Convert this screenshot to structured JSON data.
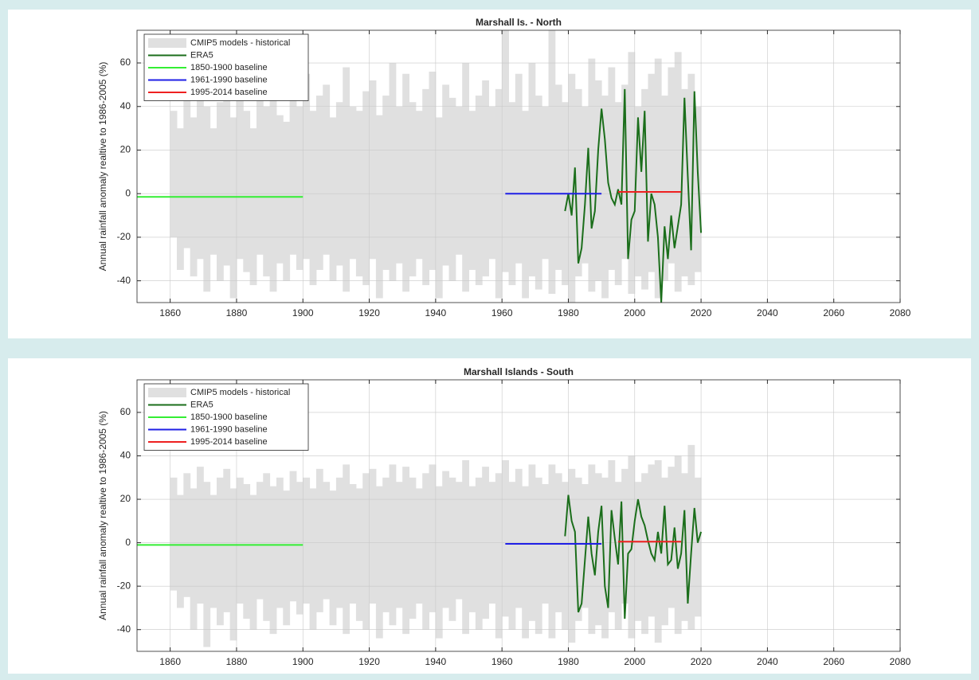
{
  "chart_data": [
    {
      "type": "line",
      "title": "Marshall Is. - North",
      "y_label": "Annual rainfall anomaly realtive to 1986-2005 (%)",
      "xlim": [
        1850,
        2080
      ],
      "xticks": [
        1860,
        1880,
        1900,
        1920,
        1940,
        1960,
        1980,
        2000,
        2020,
        2040,
        2060,
        2080
      ],
      "ylim": [
        -50,
        75
      ],
      "yticks": [
        -40,
        -20,
        0,
        20,
        40,
        60
      ],
      "grid": true,
      "legend": "upper-left",
      "series": [
        {
          "name": "CMIP5 models - historical",
          "color": "#e0e0e0",
          "kind": "band",
          "x": [
            1861,
            1863,
            1865,
            1867,
            1869,
            1871,
            1873,
            1875,
            1877,
            1879,
            1881,
            1883,
            1885,
            1887,
            1889,
            1891,
            1893,
            1895,
            1897,
            1899,
            1901,
            1903,
            1905,
            1907,
            1909,
            1911,
            1913,
            1915,
            1917,
            1919,
            1921,
            1923,
            1925,
            1927,
            1929,
            1931,
            1933,
            1935,
            1937,
            1939,
            1941,
            1943,
            1945,
            1947,
            1949,
            1951,
            1953,
            1955,
            1957,
            1959,
            1961,
            1963,
            1965,
            1967,
            1969,
            1971,
            1973,
            1975,
            1977,
            1979,
            1981,
            1983,
            1985,
            1987,
            1989,
            1991,
            1993,
            1995,
            1997,
            1999,
            2001,
            2003,
            2005,
            2007,
            2009,
            2011,
            2013,
            2015,
            2017,
            2019
          ],
          "upper": [
            38,
            30,
            45,
            35,
            50,
            40,
            30,
            42,
            55,
            35,
            48,
            38,
            30,
            45,
            40,
            52,
            36,
            33,
            48,
            40,
            55,
            38,
            45,
            50,
            35,
            42,
            58,
            40,
            38,
            47,
            52,
            36,
            45,
            60,
            40,
            55,
            42,
            38,
            48,
            56,
            35,
            50,
            44,
            40,
            60,
            38,
            45,
            52,
            40,
            48,
            75,
            42,
            55,
            38,
            60,
            45,
            40,
            75,
            50,
            42,
            55,
            48,
            40,
            62,
            52,
            45,
            58,
            42,
            50,
            65,
            40,
            48,
            55,
            62,
            45,
            58,
            65,
            48,
            55,
            40
          ],
          "lower": [
            -20,
            -35,
            -25,
            -38,
            -30,
            -45,
            -28,
            -40,
            -33,
            -48,
            -30,
            -36,
            -42,
            -28,
            -38,
            -45,
            -32,
            -40,
            -28,
            -35,
            -30,
            -42,
            -35,
            -28,
            -40,
            -33,
            -45,
            -30,
            -38,
            -42,
            -30,
            -48,
            -35,
            -40,
            -32,
            -45,
            -38,
            -30,
            -42,
            -35,
            -48,
            -33,
            -40,
            -28,
            -45,
            -35,
            -42,
            -38,
            -30,
            -48,
            -36,
            -42,
            -32,
            -48,
            -38,
            -44,
            -30,
            -46,
            -35,
            -42,
            -50,
            -38,
            -32,
            -45,
            -40,
            -48,
            -35,
            -42,
            -30,
            -46,
            -38,
            -44,
            -36,
            -48,
            -40,
            -32,
            -45,
            -38,
            -42,
            -36
          ]
        },
        {
          "name": "ERA5",
          "color": "#1b6e1b",
          "x": [
            1979,
            1980,
            1981,
            1982,
            1983,
            1984,
            1985,
            1986,
            1987,
            1988,
            1989,
            1990,
            1991,
            1992,
            1993,
            1994,
            1995,
            1996,
            1997,
            1998,
            1999,
            2000,
            2001,
            2002,
            2003,
            2004,
            2005,
            2006,
            2007,
            2008,
            2009,
            2010,
            2011,
            2012,
            2013,
            2014,
            2015,
            2016,
            2017,
            2018,
            2019,
            2020
          ],
          "values": [
            -8,
            0,
            -10,
            12,
            -32,
            -25,
            -5,
            21,
            -16,
            -8,
            20,
            39,
            25,
            5,
            -2,
            -5,
            2,
            -5,
            48,
            -30,
            -12,
            -8,
            35,
            10,
            38,
            -22,
            0,
            -5,
            -20,
            -50,
            -15,
            -30,
            -10,
            -25,
            -15,
            -5,
            44,
            8,
            -26,
            47,
            10,
            -18
          ]
        },
        {
          "name": "1850-1900 baseline",
          "color": "#33ee33",
          "x": [
            1850,
            1900
          ],
          "values": [
            -1.5,
            -1.5
          ]
        },
        {
          "name": "1961-1990 baseline",
          "color": "#1f1fe6",
          "x": [
            1961,
            1990
          ],
          "values": [
            0,
            0
          ]
        },
        {
          "name": "1995-2014 baseline",
          "color": "#ee2020",
          "x": [
            1995,
            2014
          ],
          "values": [
            0.8,
            0.8
          ]
        }
      ]
    },
    {
      "type": "line",
      "title": "Marshall Islands - South",
      "y_label": "Annual rainfall anomaly realtive to 1986-2005 (%)",
      "xlim": [
        1850,
        2080
      ],
      "xticks": [
        1860,
        1880,
        1900,
        1920,
        1940,
        1960,
        1980,
        2000,
        2020,
        2040,
        2060,
        2080
      ],
      "ylim": [
        -50,
        75
      ],
      "yticks": [
        -40,
        -20,
        0,
        20,
        40,
        60
      ],
      "grid": true,
      "legend": "upper-left",
      "series": [
        {
          "name": "CMIP5 models - historical",
          "color": "#e0e0e0",
          "kind": "band",
          "x": [
            1861,
            1863,
            1865,
            1867,
            1869,
            1871,
            1873,
            1875,
            1877,
            1879,
            1881,
            1883,
            1885,
            1887,
            1889,
            1891,
            1893,
            1895,
            1897,
            1899,
            1901,
            1903,
            1905,
            1907,
            1909,
            1911,
            1913,
            1915,
            1917,
            1919,
            1921,
            1923,
            1925,
            1927,
            1929,
            1931,
            1933,
            1935,
            1937,
            1939,
            1941,
            1943,
            1945,
            1947,
            1949,
            1951,
            1953,
            1955,
            1957,
            1959,
            1961,
            1963,
            1965,
            1967,
            1969,
            1971,
            1973,
            1975,
            1977,
            1979,
            1981,
            1983,
            1985,
            1987,
            1989,
            1991,
            1993,
            1995,
            1997,
            1999,
            2001,
            2003,
            2005,
            2007,
            2009,
            2011,
            2013,
            2015,
            2017,
            2019
          ],
          "upper": [
            30,
            22,
            32,
            25,
            35,
            28,
            22,
            30,
            34,
            25,
            30,
            27,
            22,
            28,
            32,
            26,
            30,
            24,
            33,
            28,
            30,
            25,
            34,
            28,
            24,
            30,
            36,
            27,
            25,
            32,
            34,
            26,
            30,
            36,
            28,
            35,
            30,
            25,
            32,
            36,
            26,
            33,
            30,
            28,
            38,
            26,
            30,
            35,
            28,
            32,
            38,
            28,
            34,
            26,
            36,
            30,
            27,
            36,
            32,
            28,
            34,
            30,
            27,
            36,
            32,
            30,
            38,
            28,
            34,
            40,
            28,
            32,
            36,
            38,
            30,
            35,
            40,
            32,
            45,
            30
          ],
          "lower": [
            -22,
            -30,
            -25,
            -40,
            -28,
            -48,
            -30,
            -38,
            -32,
            -45,
            -28,
            -35,
            -40,
            -26,
            -36,
            -42,
            -30,
            -38,
            -27,
            -33,
            -28,
            -40,
            -32,
            -26,
            -38,
            -30,
            -42,
            -28,
            -36,
            -40,
            -28,
            -44,
            -32,
            -38,
            -30,
            -42,
            -35,
            -28,
            -40,
            -32,
            -44,
            -30,
            -36,
            -26,
            -42,
            -32,
            -40,
            -35,
            -28,
            -44,
            -34,
            -40,
            -30,
            -44,
            -36,
            -42,
            -28,
            -44,
            -32,
            -40,
            -46,
            -36,
            -30,
            -42,
            -38,
            -44,
            -32,
            -40,
            -28,
            -44,
            -36,
            -42,
            -34,
            -46,
            -38,
            -30,
            -42,
            -36,
            -40,
            -34
          ]
        },
        {
          "name": "ERA5",
          "color": "#1b6e1b",
          "x": [
            1979,
            1980,
            1981,
            1982,
            1983,
            1984,
            1985,
            1986,
            1987,
            1988,
            1989,
            1990,
            1991,
            1992,
            1993,
            1994,
            1995,
            1996,
            1997,
            1998,
            1999,
            2000,
            2001,
            2002,
            2003,
            2004,
            2005,
            2006,
            2007,
            2008,
            2009,
            2010,
            2011,
            2012,
            2013,
            2014,
            2015,
            2016,
            2017,
            2018,
            2019,
            2020
          ],
          "values": [
            3,
            22,
            10,
            5,
            -32,
            -28,
            -8,
            12,
            -5,
            -15,
            5,
            17,
            -20,
            -30,
            15,
            2,
            -10,
            19,
            -35,
            -5,
            -3,
            10,
            20,
            12,
            8,
            1,
            -5,
            -8,
            5,
            -5,
            17,
            -10,
            -8,
            7,
            -12,
            -5,
            15,
            -28,
            -5,
            16,
            0,
            5
          ]
        },
        {
          "name": "1850-1900 baseline",
          "color": "#33ee33",
          "x": [
            1850,
            1900
          ],
          "values": [
            -1,
            -1
          ]
        },
        {
          "name": "1961-1990 baseline",
          "color": "#1f1fe6",
          "x": [
            1961,
            1990
          ],
          "values": [
            -0.5,
            -0.5
          ]
        },
        {
          "name": "1995-2014 baseline",
          "color": "#ee2020",
          "x": [
            1995,
            2014
          ],
          "values": [
            0.5,
            0.5
          ]
        }
      ]
    }
  ]
}
